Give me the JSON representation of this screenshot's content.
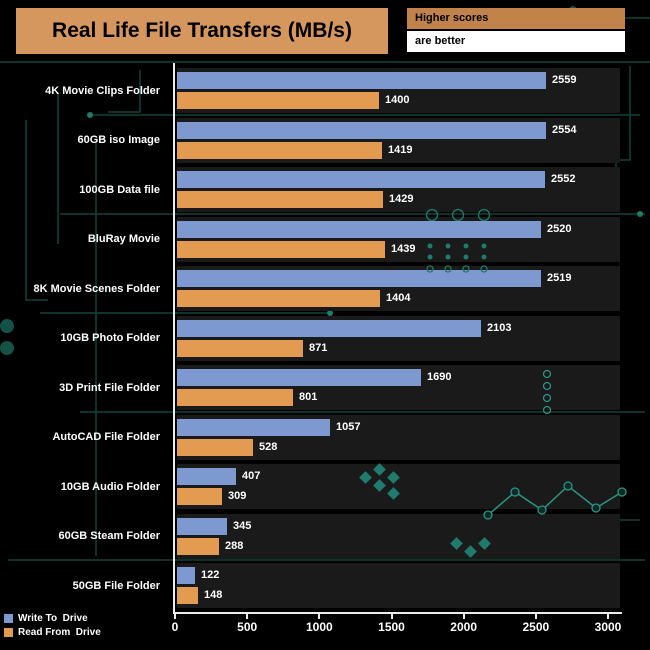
{
  "header": {
    "title": "Real Life File Transfers (MB/s)",
    "note_line1": "Higher scores",
    "note_line2": "are better"
  },
  "chart_data": {
    "type": "bar",
    "orientation": "horizontal",
    "title": "Real Life File Transfers (MB/s)",
    "categories": [
      "4K Movie Clips Folder",
      "60GB iso Image",
      "100GB Data file",
      "BluRay Movie",
      "8K Movie Scenes Folder",
      "10GB Photo Folder",
      "3D Print File Folder",
      "AutoCAD File Folder",
      "10GB Audio Folder",
      "60GB Steam Folder",
      "50GB File Folder"
    ],
    "series": [
      {
        "name": "Write To  Drive",
        "color": "#7e99cf",
        "values": [
          2559,
          2554,
          2552,
          2520,
          2519,
          2103,
          1690,
          1057,
          407,
          345,
          122
        ]
      },
      {
        "name": "Read From  Drive",
        "color": "#e29b51",
        "values": [
          1400,
          1419,
          1429,
          1439,
          1404,
          871,
          801,
          528,
          309,
          288,
          148
        ]
      }
    ],
    "xlim": [
      0,
      3000
    ],
    "xticks": [
      0,
      500,
      1000,
      1500,
      2000,
      2500,
      3000
    ],
    "grid": false,
    "legend_position": "bottom-left",
    "colors": {
      "background": "#000000",
      "row_band": "#1a1a1a",
      "axis": "#ececec",
      "value_text": "#ffffff",
      "title_box": "#d5975e",
      "note_box": "#c1834a",
      "circuit_dark": "#10423b",
      "circuit_bright": "#2a9483"
    }
  }
}
